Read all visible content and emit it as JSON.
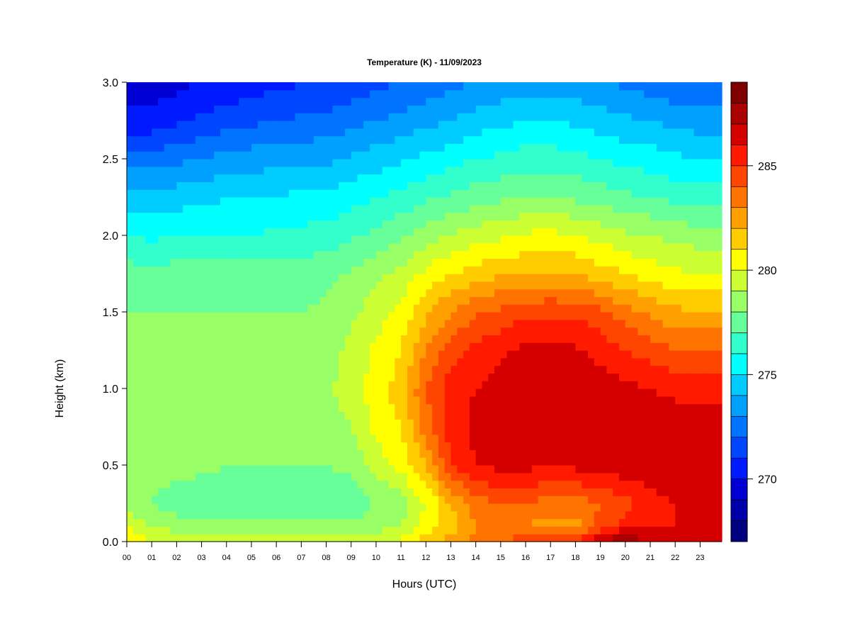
{
  "chart_data": {
    "type": "heatmap",
    "title": "Temperature (K) - 11/09/2023",
    "xlabel": "Hours (UTC)",
    "ylabel": "Height (km)",
    "xlim": [
      0,
      23.87
    ],
    "ylim": [
      0,
      3.0
    ],
    "x_tick_labels": [
      "00",
      "01",
      "02",
      "03",
      "04",
      "05",
      "06",
      "07",
      "08",
      "09",
      "10",
      "11",
      "12",
      "13",
      "14",
      "15",
      "16",
      "17",
      "18",
      "19",
      "20",
      "21",
      "22",
      "23"
    ],
    "y_tick_labels": [
      "0.0",
      "0.5",
      "1.0",
      "1.5",
      "2.0",
      "2.5",
      "3.0"
    ],
    "y_ticks": [
      0,
      0.5,
      1.0,
      1.5,
      2.0,
      2.5,
      3.0
    ],
    "grid": false,
    "colorbar": {
      "placement": "right",
      "range": [
        267,
        289
      ],
      "step": 1,
      "tick_values": [
        270,
        275,
        280,
        285
      ],
      "tick_labels": [
        "270",
        "275",
        "280",
        "285"
      ],
      "colors": [
        "#000080",
        "#0000AA",
        "#0000D4",
        "#001AFF",
        "#0046FF",
        "#0073FF",
        "#00A0FF",
        "#00CCFF",
        "#00FFFF",
        "#33FFCC",
        "#66FF99",
        "#99FF66",
        "#CCFF33",
        "#FFFF00",
        "#FFCC00",
        "#FFA000",
        "#FF7300",
        "#FF4600",
        "#FF1A00",
        "#D40000",
        "#AA0000",
        "#800000"
      ]
    },
    "hours": [
      0,
      1,
      2,
      3,
      4,
      5,
      6,
      7,
      8,
      9,
      10,
      11,
      12,
      13,
      14,
      15,
      16,
      17,
      18,
      19,
      20,
      21,
      22,
      23
    ],
    "heights_km": [
      0.0,
      0.1,
      0.25,
      0.5,
      0.75,
      1.0,
      1.25,
      1.5,
      1.75,
      2.0,
      2.25,
      2.5,
      2.75,
      3.0
    ],
    "temperature_K": [
      [
        281,
        280,
        280,
        279.5,
        279.5,
        279.5,
        279.5,
        279.5,
        279.5,
        279.5,
        280,
        280.3,
        281.5,
        282.5,
        283.5,
        284,
        284.5,
        285,
        285.5,
        287,
        288,
        287,
        286.5,
        286
      ],
      [
        280,
        279,
        278.5,
        278.3,
        278.3,
        278.3,
        278.3,
        278.3,
        278.3,
        278.3,
        278.5,
        279,
        280.5,
        281.5,
        283,
        283.3,
        283,
        282.5,
        282.5,
        284.5,
        285.5,
        286,
        286,
        286
      ],
      [
        278.5,
        278,
        277.5,
        277.5,
        277.3,
        277,
        277,
        277,
        277,
        277.3,
        278,
        278.5,
        280,
        282,
        283.5,
        284,
        284,
        283.5,
        283.5,
        284,
        284.5,
        285.5,
        286,
        286
      ],
      [
        278.5,
        278.5,
        278.3,
        278.2,
        278,
        278,
        278,
        278,
        278,
        278.3,
        279.5,
        280.3,
        282,
        285,
        286,
        286.3,
        286.3,
        286,
        286.3,
        286.5,
        286.8,
        286.8,
        287,
        287
      ],
      [
        278.7,
        278.7,
        278.5,
        278.5,
        278.5,
        278.5,
        278.5,
        278.5,
        278.6,
        279,
        280.3,
        281,
        283.5,
        285.5,
        286.3,
        286.5,
        286.8,
        286.8,
        286.8,
        286.8,
        286.8,
        286.5,
        286.5,
        286.5
      ],
      [
        278.7,
        278.7,
        278.7,
        278.7,
        278.7,
        278.7,
        278.7,
        278.7,
        278.8,
        279.5,
        280.5,
        281.5,
        284,
        285.5,
        286,
        286.3,
        286.8,
        286.8,
        286.8,
        286.5,
        286.3,
        286,
        285.8,
        285.5
      ],
      [
        278.5,
        278.5,
        278.5,
        278.5,
        278.5,
        278.5,
        278.5,
        278.5,
        278.6,
        279.2,
        280.2,
        281,
        283,
        284.5,
        285.3,
        285.8,
        286.2,
        286.3,
        286.2,
        285.7,
        285,
        284.5,
        284,
        284
      ],
      [
        278,
        278,
        278,
        278,
        278,
        278,
        278,
        278,
        278.2,
        278.8,
        279.5,
        280.3,
        281.8,
        283,
        283.8,
        284.3,
        284.8,
        284.8,
        284.8,
        284.2,
        283.5,
        282.8,
        282.3,
        282
      ],
      [
        277.5,
        277.3,
        277.5,
        277.5,
        277.5,
        277.5,
        277.5,
        277.6,
        277.7,
        278.2,
        278.8,
        279.3,
        280.3,
        281,
        281.5,
        281.8,
        282,
        282.2,
        282,
        281.5,
        281,
        280.5,
        280.2,
        280
      ],
      [
        276,
        275.8,
        276,
        276,
        276,
        276,
        276.2,
        276.3,
        276.4,
        276.8,
        277.3,
        277.8,
        278.5,
        279,
        279.5,
        279.8,
        280.2,
        280.3,
        280.1,
        279.6,
        279.2,
        279,
        278.7,
        278.5
      ],
      [
        274.5,
        274.3,
        274.5,
        274.7,
        275,
        275,
        275.1,
        275.2,
        275.3,
        275.6,
        276,
        276.3,
        276.8,
        277.2,
        277.5,
        277.8,
        278,
        278,
        277.8,
        277.5,
        277.2,
        277,
        276.7,
        276.5
      ],
      [
        272.5,
        272.5,
        272.8,
        273,
        273.3,
        273.5,
        273.6,
        273.7,
        273.8,
        274.1,
        274.5,
        274.8,
        275.2,
        275.6,
        276,
        276.2,
        276.5,
        276.5,
        276.3,
        276,
        275.7,
        275.5,
        275.2,
        275
      ],
      [
        270.3,
        270.3,
        270.8,
        271.2,
        271.5,
        271.8,
        272,
        272.2,
        272.3,
        272.6,
        273,
        273.3,
        273.7,
        274,
        274.5,
        274.7,
        275,
        275,
        274.8,
        274.5,
        274.2,
        274,
        273.7,
        273.5
      ],
      [
        269.5,
        269.5,
        269.7,
        270,
        270.3,
        270.5,
        270.7,
        270.9,
        271,
        271.3,
        271.7,
        272,
        272.3,
        272.7,
        273,
        273.3,
        273.5,
        273.5,
        273.3,
        273,
        272.8,
        272.5,
        272.2,
        272
      ]
    ]
  }
}
